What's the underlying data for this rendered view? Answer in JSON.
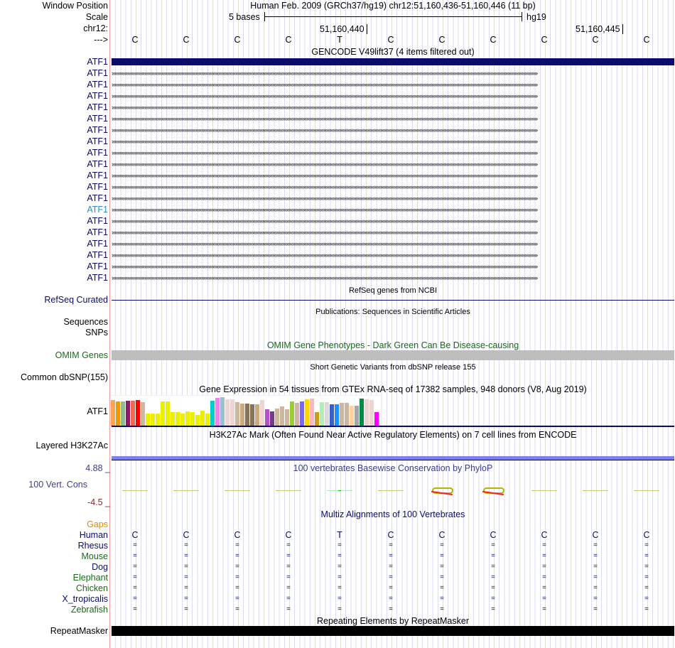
{
  "header": {
    "window_position_label": "Window Position",
    "assembly": "Human Feb. 2009 (GRCh37/hg19)   chr12:51,160,436-51,160,446 (11 bp)",
    "scale_label": "Scale",
    "scale_text": "5 bases",
    "scale_db": "hg19",
    "chrom_label": "chr12:",
    "pos1": "51,160,440",
    "pos2": "51,160,445",
    "strand_label": "--->"
  },
  "bases": [
    "C",
    "C",
    "C",
    "C",
    "T",
    "C",
    "C",
    "C",
    "C",
    "C",
    "C"
  ],
  "gencode": {
    "title": "GENCODE V49lift37 (4 items filtered out)",
    "rows": [
      "ATF1",
      "ATF1",
      "ATF1",
      "ATF1",
      "ATF1",
      "ATF1",
      "ATF1",
      "ATF1",
      "ATF1",
      "ATF1",
      "ATF1",
      "ATF1",
      "ATF1",
      "ATF1",
      "ATF1",
      "ATF1",
      "ATF1",
      "ATF1",
      "ATF1",
      "ATF1"
    ],
    "highlight_index": 13,
    "color": "#0b0b6e",
    "highlight_color": "#2a8fc6"
  },
  "refseq": {
    "title": "RefSeq genes from NCBI",
    "label": "RefSeq Curated"
  },
  "publications": {
    "title": "Publications: Sequences in Scientific Articles",
    "label1": "Sequences",
    "label2": "SNPs"
  },
  "omim": {
    "title": "OMIM Gene Phenotypes - Dark Green Can Be Disease-causing",
    "label": "OMIM Genes"
  },
  "dbsnp": {
    "title": "Short Genetic Variants from dbSNP release 155",
    "label": "Common dbSNP(155)"
  },
  "gtex": {
    "title": "Gene Expression in 54 tissues from GTEx RNA-seq of 17382 samples, 948 donors (V8, Aug 2019)",
    "label": "ATF1",
    "values": [
      115,
      110,
      109,
      112,
      112,
      115,
      106,
      58,
      58,
      58,
      109,
      109,
      62,
      64,
      55,
      67,
      63,
      50,
      70,
      58,
      112,
      127,
      130,
      118,
      118,
      106,
      100,
      100,
      97,
      97,
      115,
      76,
      67,
      79,
      88,
      76,
      109,
      103,
      109,
      118,
      124,
      64,
      106,
      106,
      97,
      97,
      103,
      103,
      91,
      91,
      121,
      118,
      115,
      64
    ],
    "colors": [
      "#ffa54f",
      "#ee9a00",
      "#8fbc8f",
      "#8b1c62",
      "#ee6a50",
      "#ff0000",
      "#cdb79e",
      "#eeee00",
      "#eeee00",
      "#eeee00",
      "#eeee00",
      "#eeee00",
      "#eeee00",
      "#eeee00",
      "#eeee00",
      "#eeee00",
      "#eeee00",
      "#eeee00",
      "#eeee00",
      "#eeee00",
      "#00cdcd",
      "#ee82ee",
      "#9ac0cd",
      "#eed5d2",
      "#eed5d2",
      "#cdb79e",
      "#cdaa7d",
      "#8b7355",
      "#8b7355",
      "#cdaa7d",
      "#eed5d2",
      "#b452cd",
      "#7a378b",
      "#cdb79e",
      "#cdb79e",
      "#cdb79e",
      "#9acd32",
      "#cdb79e",
      "#7b68ee",
      "#ffd700",
      "#ffb6c1",
      "#cd9b1d",
      "#b4eeb4",
      "#d9d9d9",
      "#3a5fcd",
      "#1e90ff",
      "#cdb79e",
      "#cdb79e",
      "#ffd39b",
      "#a6a6a6",
      "#008b45",
      "#eed5d2",
      "#eed5d2",
      "#ff00ff"
    ]
  },
  "h3k27ac": {
    "title": "H3K27Ac Mark (Often Found Near Active Regulatory Elements) on 7 cell lines from ENCODE",
    "label": "Layered H3K27Ac",
    "color": "#7f7fee"
  },
  "cons": {
    "title": "100 vertebrates Basewise Conservation by PhyloP",
    "label": "100 Vert. Cons",
    "max": "4.88 _",
    "min": "-4.5 _"
  },
  "multiz": {
    "title": "Multiz Alignments of 100 Vertebrates",
    "gaps_label": "Gaps",
    "species": [
      {
        "name": "Human",
        "color": "#0b0b6e"
      },
      {
        "name": "Rhesus",
        "color": "#0b0b6e"
      },
      {
        "name": "Mouse",
        "color": "#1a6b1a"
      },
      {
        "name": "Dog",
        "color": "#0b0b6e"
      },
      {
        "name": "Elephant",
        "color": "#1a6b1a"
      },
      {
        "name": "Chicken",
        "color": "#1a6b1a"
      },
      {
        "name": "X_tropicalis",
        "color": "#0b0b6e"
      },
      {
        "name": "Zebrafish",
        "color": "#1a6b1a"
      }
    ],
    "match_glyph": "="
  },
  "repeatmasker": {
    "title": "Repeating Elements by RepeatMasker",
    "label": "RepeatMasker"
  }
}
